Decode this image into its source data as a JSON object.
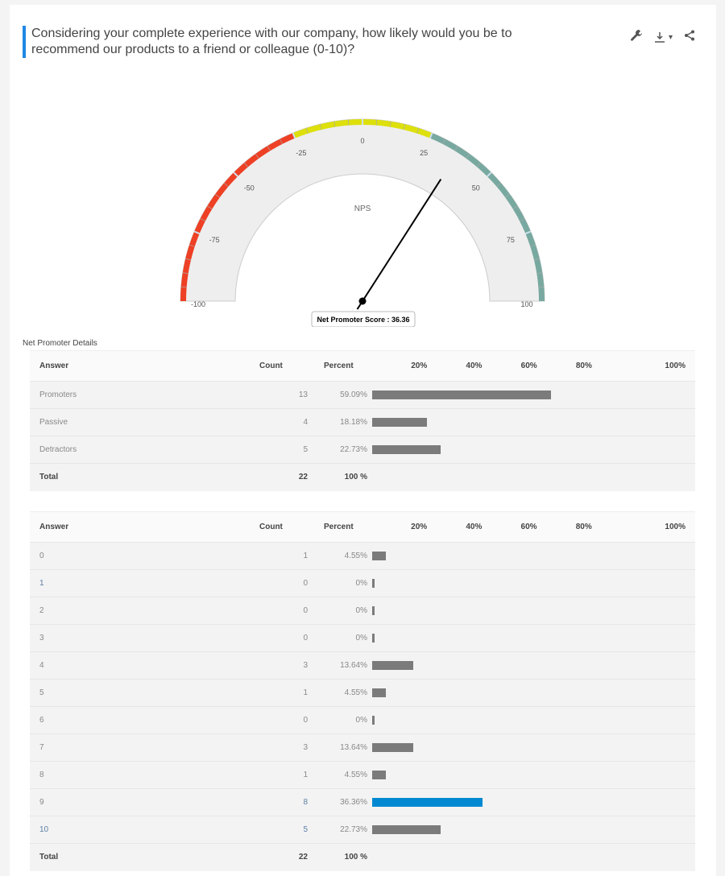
{
  "title": "Considering your complete experience with our company, how likely would you be to recommend our products to a friend or colleague (0-10)?",
  "toolbar": {
    "icons": [
      "wrench-icon",
      "download-icon",
      "share-icon"
    ],
    "dropdown": "▾"
  },
  "gauge": {
    "label": "NPS",
    "value": 36.36,
    "min": -100,
    "max": 100,
    "ticks": [
      "-100",
      "-75",
      "-50",
      "-25",
      "0",
      "25",
      "50",
      "75",
      "100"
    ],
    "bands": [
      {
        "from": -100,
        "to": -25,
        "color": "#ee4024"
      },
      {
        "from": -25,
        "to": 25,
        "color": "#dde00b"
      },
      {
        "from": 25,
        "to": 100,
        "color": "#78a9a0"
      }
    ],
    "tooltip": "Net Promoter Score : 36.36"
  },
  "section_label": "Net Promoter Details",
  "columns": {
    "answer": "Answer",
    "count": "Count",
    "percent": "Percent",
    "scale": [
      "20%",
      "40%",
      "60%",
      "80%",
      "100%"
    ]
  },
  "nps_table": {
    "rows": [
      {
        "answer": "Promoters",
        "count": "13",
        "percent": "59.09%",
        "value": 59.09
      },
      {
        "answer": "Passive",
        "count": "4",
        "percent": "18.18%",
        "value": 18.18
      },
      {
        "answer": "Detractors",
        "count": "5",
        "percent": "22.73%",
        "value": 22.73
      }
    ],
    "total": {
      "label": "Total",
      "count": "22",
      "percent": "100 %"
    }
  },
  "score_table": {
    "rows": [
      {
        "answer": "0",
        "count": "1",
        "percent": "4.55%",
        "value": 4.55
      },
      {
        "answer": "1",
        "count": "0",
        "percent": "0%",
        "value": 0
      },
      {
        "answer": "2",
        "count": "0",
        "percent": "0%",
        "value": 0
      },
      {
        "answer": "3",
        "count": "0",
        "percent": "0%",
        "value": 0
      },
      {
        "answer": "4",
        "count": "3",
        "percent": "13.64%",
        "value": 13.64
      },
      {
        "answer": "5",
        "count": "1",
        "percent": "4.55%",
        "value": 4.55
      },
      {
        "answer": "6",
        "count": "0",
        "percent": "0%",
        "value": 0
      },
      {
        "answer": "7",
        "count": "3",
        "percent": "13.64%",
        "value": 13.64
      },
      {
        "answer": "8",
        "count": "1",
        "percent": "4.55%",
        "value": 4.55
      },
      {
        "answer": "9",
        "count": "8",
        "percent": "36.36%",
        "value": 36.36,
        "highlight": true
      },
      {
        "answer": "10",
        "count": "5",
        "percent": "22.73%",
        "value": 22.73
      }
    ],
    "total": {
      "label": "Total",
      "count": "22",
      "percent": "100 %"
    }
  },
  "colors": {
    "accent": "#1e88e5",
    "bar": "#7b7b7b",
    "highlight_bar": "#0089d1"
  }
}
